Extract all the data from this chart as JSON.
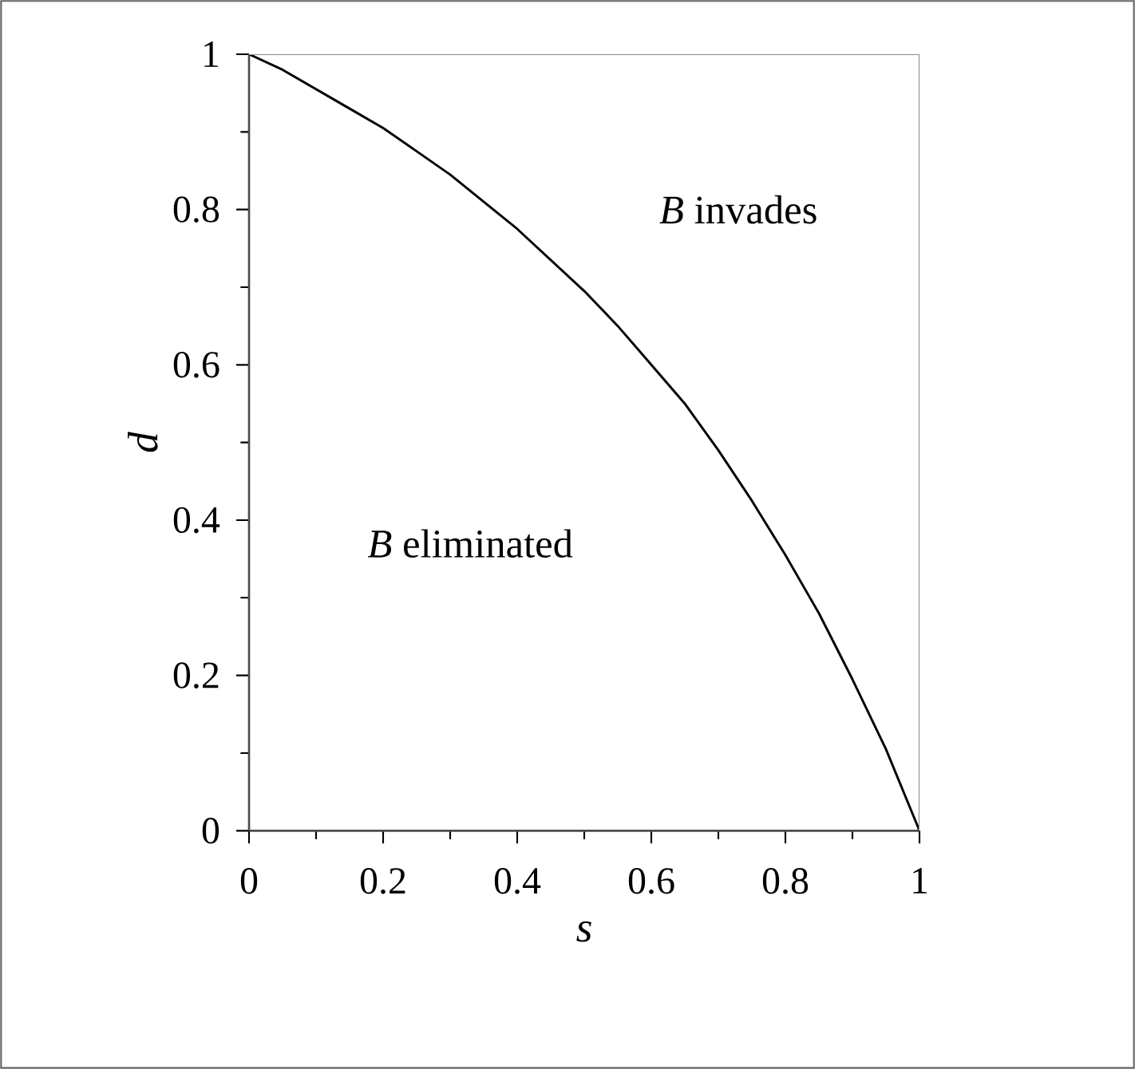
{
  "chart_data": {
    "type": "line",
    "xlabel": "s",
    "ylabel": "d",
    "x": [
      0,
      0.05,
      0.1,
      0.15,
      0.2,
      0.25,
      0.3,
      0.35,
      0.4,
      0.45,
      0.5,
      0.55,
      0.6,
      0.65,
      0.7,
      0.75,
      0.8,
      0.85,
      0.9,
      0.95,
      1
    ],
    "series": [
      {
        "color": "#000000",
        "values": [
          1,
          0.98,
          0.955,
          0.93,
          0.905,
          0.875,
          0.845,
          0.81,
          0.775,
          0.735,
          0.695,
          0.65,
          0.6,
          0.55,
          0.49,
          0.425,
          0.355,
          0.28,
          0.195,
          0.105,
          0
        ]
      }
    ],
    "xlim": [
      0,
      1
    ],
    "ylim": [
      0,
      1
    ],
    "xticks": [
      0,
      0.2,
      0.4,
      0.6,
      0.8,
      1
    ],
    "yticks": [
      0,
      0.2,
      0.4,
      0.6,
      0.8,
      1
    ],
    "annotations": [
      "*B* invades",
      "*B* eliminated"
    ],
    "grid": false,
    "marker": "none",
    "line_style": "solid"
  }
}
